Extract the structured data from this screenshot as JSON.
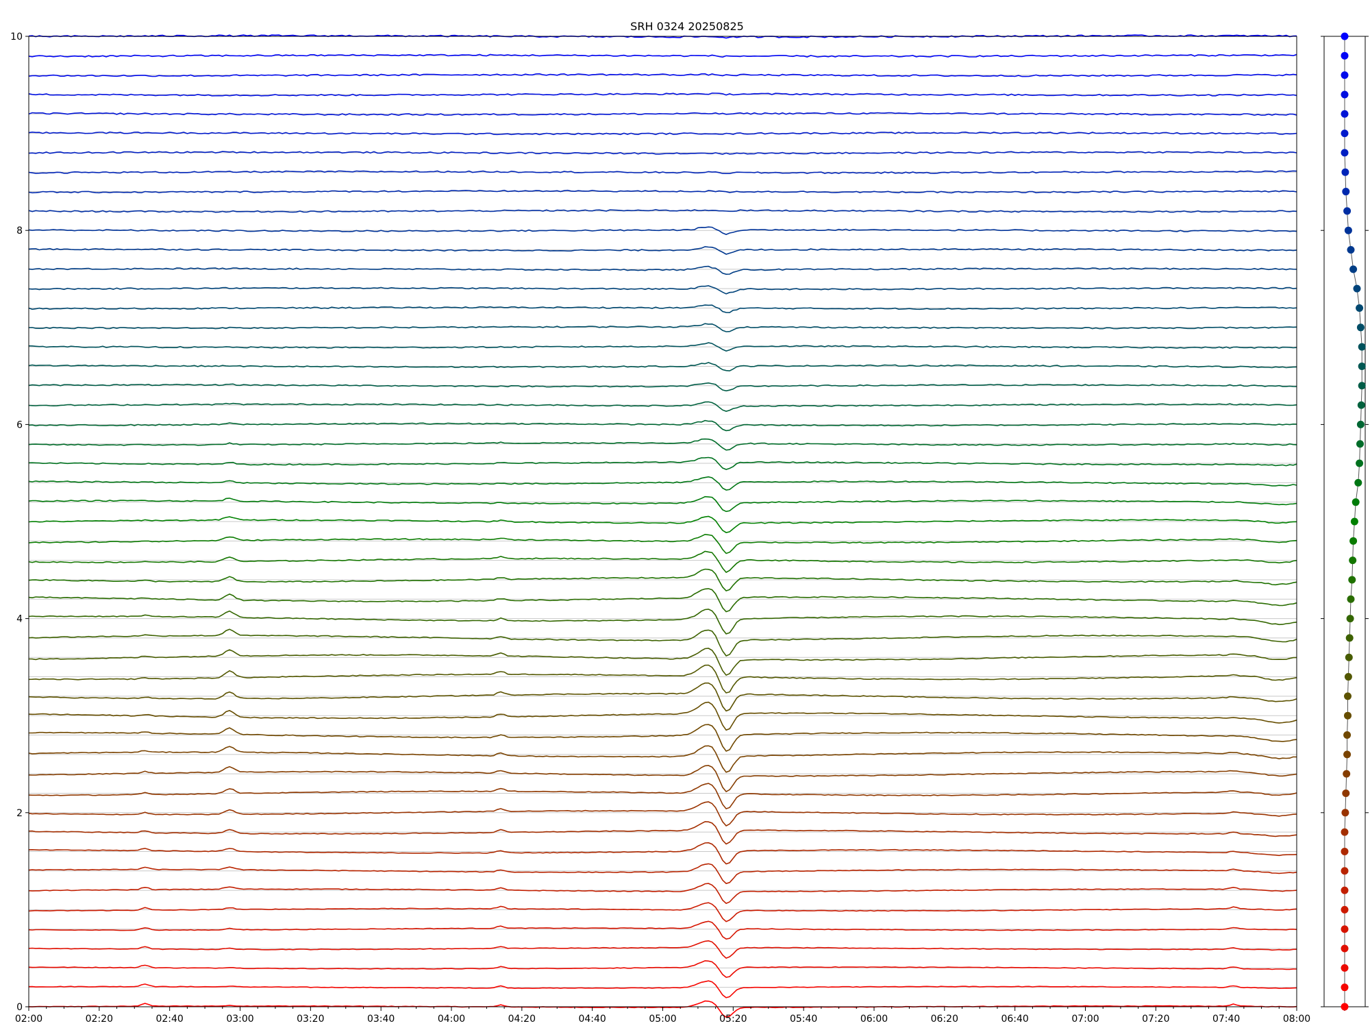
{
  "chart_data": [
    {
      "type": "line",
      "title": "SRH 0324 20250825",
      "xlabel": "",
      "ylabel": "",
      "x_range": [
        "02:00",
        "08:00"
      ],
      "x_tick_labels": [
        "02:00",
        "02:20",
        "02:40",
        "03:00",
        "03:20",
        "03:40",
        "04:00",
        "04:20",
        "04:40",
        "05:00",
        "05:20",
        "05:40",
        "06:00",
        "06:20",
        "06:40",
        "07:00",
        "07:20",
        "07:40",
        "08:00"
      ],
      "ylim": [
        0,
        10
      ],
      "y_tick_labels": [
        "0",
        "2",
        "4",
        "6",
        "8",
        "10"
      ],
      "y_ticks": [
        0,
        2,
        4,
        6,
        8,
        10
      ],
      "grid": "horizontal baseline per series",
      "legend": "none",
      "num_series": 51,
      "series_offset_step": 0.2,
      "color_start": "#ff0000",
      "color_mid": "#008000",
      "color_end": "#0000ff",
      "events": [
        {
          "time": "02:33",
          "label": ""
        },
        {
          "time": "02:57",
          "label": ""
        },
        {
          "time": "04:14",
          "label": ""
        },
        {
          "time": "05:16",
          "label": ""
        },
        {
          "time": "07:42",
          "label": ""
        }
      ]
    },
    {
      "type": "scatter",
      "title": "",
      "ylim": [
        0,
        10
      ],
      "points_per_series": 51,
      "x_shift_profile": [
        0,
        0,
        0,
        0,
        0,
        0,
        0,
        0,
        0,
        0,
        0.5,
        1,
        1.5,
        2,
        2,
        2.5,
        2.5,
        3,
        3.5,
        4,
        4.5,
        5,
        6,
        6.5,
        7,
        8,
        9,
        11,
        12,
        12.5,
        13,
        13.5,
        14,
        14,
        14,
        13,
        12,
        10,
        7,
        5,
        3,
        2,
        1,
        0.5,
        0,
        0,
        0,
        0,
        0,
        0,
        0
      ]
    }
  ]
}
